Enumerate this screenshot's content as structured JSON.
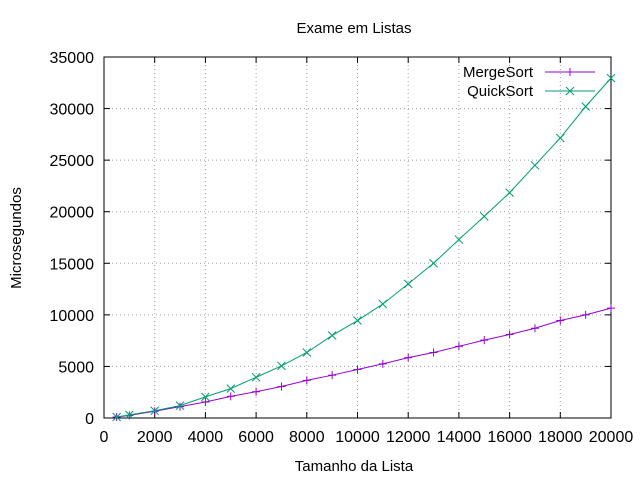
{
  "chart_data": {
    "type": "line",
    "title": "Exame em Listas",
    "xlabel": "Tamanho da Lista",
    "ylabel": "Microsegundos",
    "xlim": [
      0,
      20000
    ],
    "ylim": [
      0,
      35000
    ],
    "x_ticks": [
      0,
      2000,
      4000,
      6000,
      8000,
      10000,
      12000,
      14000,
      16000,
      18000,
      20000
    ],
    "y_ticks": [
      0,
      5000,
      10000,
      15000,
      20000,
      25000,
      30000,
      35000
    ],
    "grid": true,
    "legend_position": "top-right",
    "series": [
      {
        "name": "MergeSort",
        "color": "#9400d3",
        "marker": "plus",
        "x": [
          500,
          1000,
          2000,
          3000,
          4000,
          5000,
          6000,
          7000,
          8000,
          9000,
          10000,
          11000,
          12000,
          13000,
          14000,
          15000,
          16000,
          17000,
          18000,
          19000,
          20000
        ],
        "values": [
          100,
          250,
          650,
          1100,
          1550,
          2100,
          2550,
          3050,
          3650,
          4150,
          4700,
          5250,
          5850,
          6350,
          6950,
          7550,
          8100,
          8700,
          9450,
          10000,
          10650
        ]
      },
      {
        "name": "QuickSort",
        "color": "#009e73",
        "marker": "cross",
        "x": [
          500,
          1000,
          2000,
          3000,
          4000,
          5000,
          6000,
          7000,
          8000,
          9000,
          10000,
          11000,
          12000,
          13000,
          14000,
          15000,
          16000,
          17000,
          18000,
          19000,
          20000
        ],
        "values": [
          100,
          300,
          700,
          1200,
          2050,
          2850,
          3950,
          5050,
          6350,
          8000,
          9450,
          11050,
          13000,
          15000,
          17300,
          19550,
          21850,
          24500,
          27150,
          30200,
          32950
        ]
      }
    ]
  }
}
